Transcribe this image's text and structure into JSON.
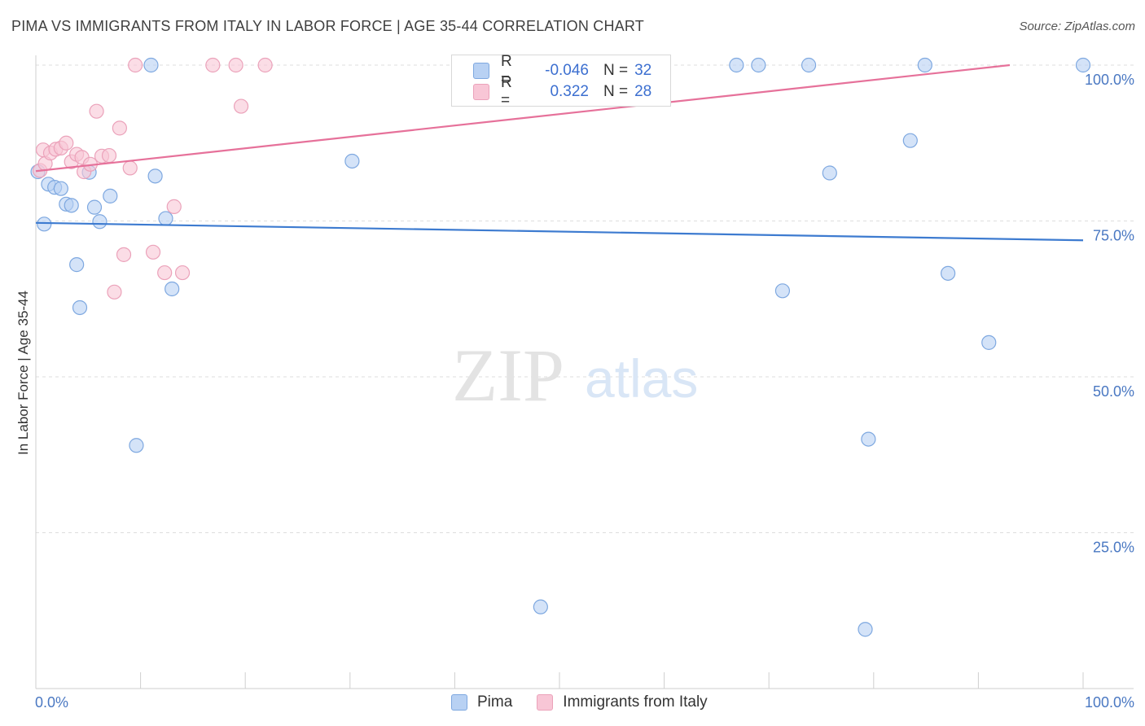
{
  "header": {
    "title": "PIMA VS IMMIGRANTS FROM ITALY IN LABOR FORCE | AGE 35-44 CORRELATION CHART",
    "source": "Source: ZipAtlas.com"
  },
  "watermark": {
    "zip": "ZIP",
    "atlas": "atlas"
  },
  "legend": {
    "series": [
      {
        "r_label": "R =",
        "r_value": "-0.046",
        "n_label": "N =",
        "n_value": "32"
      },
      {
        "r_label": "R =",
        "r_value": "0.322",
        "n_label": "N =",
        "n_value": "28"
      }
    ]
  },
  "colors": {
    "pima_fill": "#b8d1f3",
    "pima_stroke": "#7ea8e0",
    "pima_line": "#3d7bd0",
    "italy_fill": "#f8c6d6",
    "italy_stroke": "#eba2ba",
    "italy_line": "#e6719a",
    "axis_text": "#4a78c2",
    "grid": "#dedede"
  },
  "chart_data": {
    "type": "scatter",
    "title": "PIMA VS IMMIGRANTS FROM ITALY IN LABOR FORCE | AGE 35-44 CORRELATION CHART",
    "xlabel": "",
    "ylabel": "In Labor Force | Age 35-44",
    "xlim": [
      0,
      100
    ],
    "ylim": [
      0,
      100
    ],
    "x_tick_labels": [
      "0.0%",
      "100.0%"
    ],
    "y_ticks": [
      {
        "value": 25,
        "label": "25.0%"
      },
      {
        "value": 50,
        "label": "50.0%"
      },
      {
        "value": 75,
        "label": "75.0%"
      },
      {
        "value": 100,
        "label": "100.0%"
      }
    ],
    "grid": true,
    "legend_position": "top-center",
    "series": [
      {
        "name": "Pima",
        "color": "#7ea8e0",
        "trend": {
          "x": [
            0,
            100
          ],
          "y": [
            74.7,
            71.9
          ]
        },
        "points": [
          [
            0.2,
            82.9
          ],
          [
            0.8,
            74.5
          ],
          [
            1.2,
            80.9
          ],
          [
            1.8,
            80.4
          ],
          [
            2.4,
            80.2
          ],
          [
            2.9,
            77.7
          ],
          [
            3.4,
            77.5
          ],
          [
            3.9,
            68.0
          ],
          [
            4.2,
            61.1
          ],
          [
            5.1,
            82.8
          ],
          [
            5.6,
            77.2
          ],
          [
            6.1,
            74.9
          ],
          [
            7.1,
            79.0
          ],
          [
            9.6,
            39.0
          ],
          [
            11.0,
            100.0
          ],
          [
            11.4,
            82.2
          ],
          [
            12.4,
            75.4
          ],
          [
            13.0,
            64.1
          ],
          [
            30.2,
            84.6
          ],
          [
            48.2,
            13.1
          ],
          [
            66.9,
            100.0
          ],
          [
            69.0,
            100.0
          ],
          [
            71.3,
            63.8
          ],
          [
            73.8,
            100.0
          ],
          [
            75.8,
            82.7
          ],
          [
            79.5,
            40.0
          ],
          [
            79.2,
            9.5
          ],
          [
            83.5,
            87.9
          ],
          [
            84.9,
            100.0
          ],
          [
            87.1,
            66.6
          ],
          [
            91.0,
            55.5
          ],
          [
            100.0,
            100.0
          ]
        ]
      },
      {
        "name": "Immigrants from Italy",
        "color": "#eba2ba",
        "trend": {
          "x": [
            0,
            93
          ],
          "y": [
            83.0,
            100.0
          ]
        },
        "points": [
          [
            0.4,
            83.1
          ],
          [
            0.7,
            86.4
          ],
          [
            0.9,
            84.2
          ],
          [
            1.4,
            85.9
          ],
          [
            1.9,
            86.5
          ],
          [
            2.4,
            86.7
          ],
          [
            2.9,
            87.5
          ],
          [
            3.4,
            84.5
          ],
          [
            3.9,
            85.7
          ],
          [
            4.4,
            85.2
          ],
          [
            4.6,
            82.9
          ],
          [
            5.2,
            84.1
          ],
          [
            5.8,
            92.6
          ],
          [
            6.3,
            85.4
          ],
          [
            7.0,
            85.5
          ],
          [
            7.5,
            63.6
          ],
          [
            8.0,
            89.9
          ],
          [
            8.4,
            69.6
          ],
          [
            9.0,
            83.5
          ],
          [
            9.5,
            100.0
          ],
          [
            11.2,
            70.0
          ],
          [
            12.3,
            66.7
          ],
          [
            13.2,
            77.3
          ],
          [
            14.0,
            66.7
          ],
          [
            16.9,
            100.0
          ],
          [
            19.1,
            100.0
          ],
          [
            19.6,
            93.4
          ],
          [
            21.9,
            100.0
          ]
        ]
      }
    ]
  },
  "bottom_legend": {
    "items": [
      {
        "label": "Pima"
      },
      {
        "label": "Immigrants from Italy"
      }
    ]
  }
}
